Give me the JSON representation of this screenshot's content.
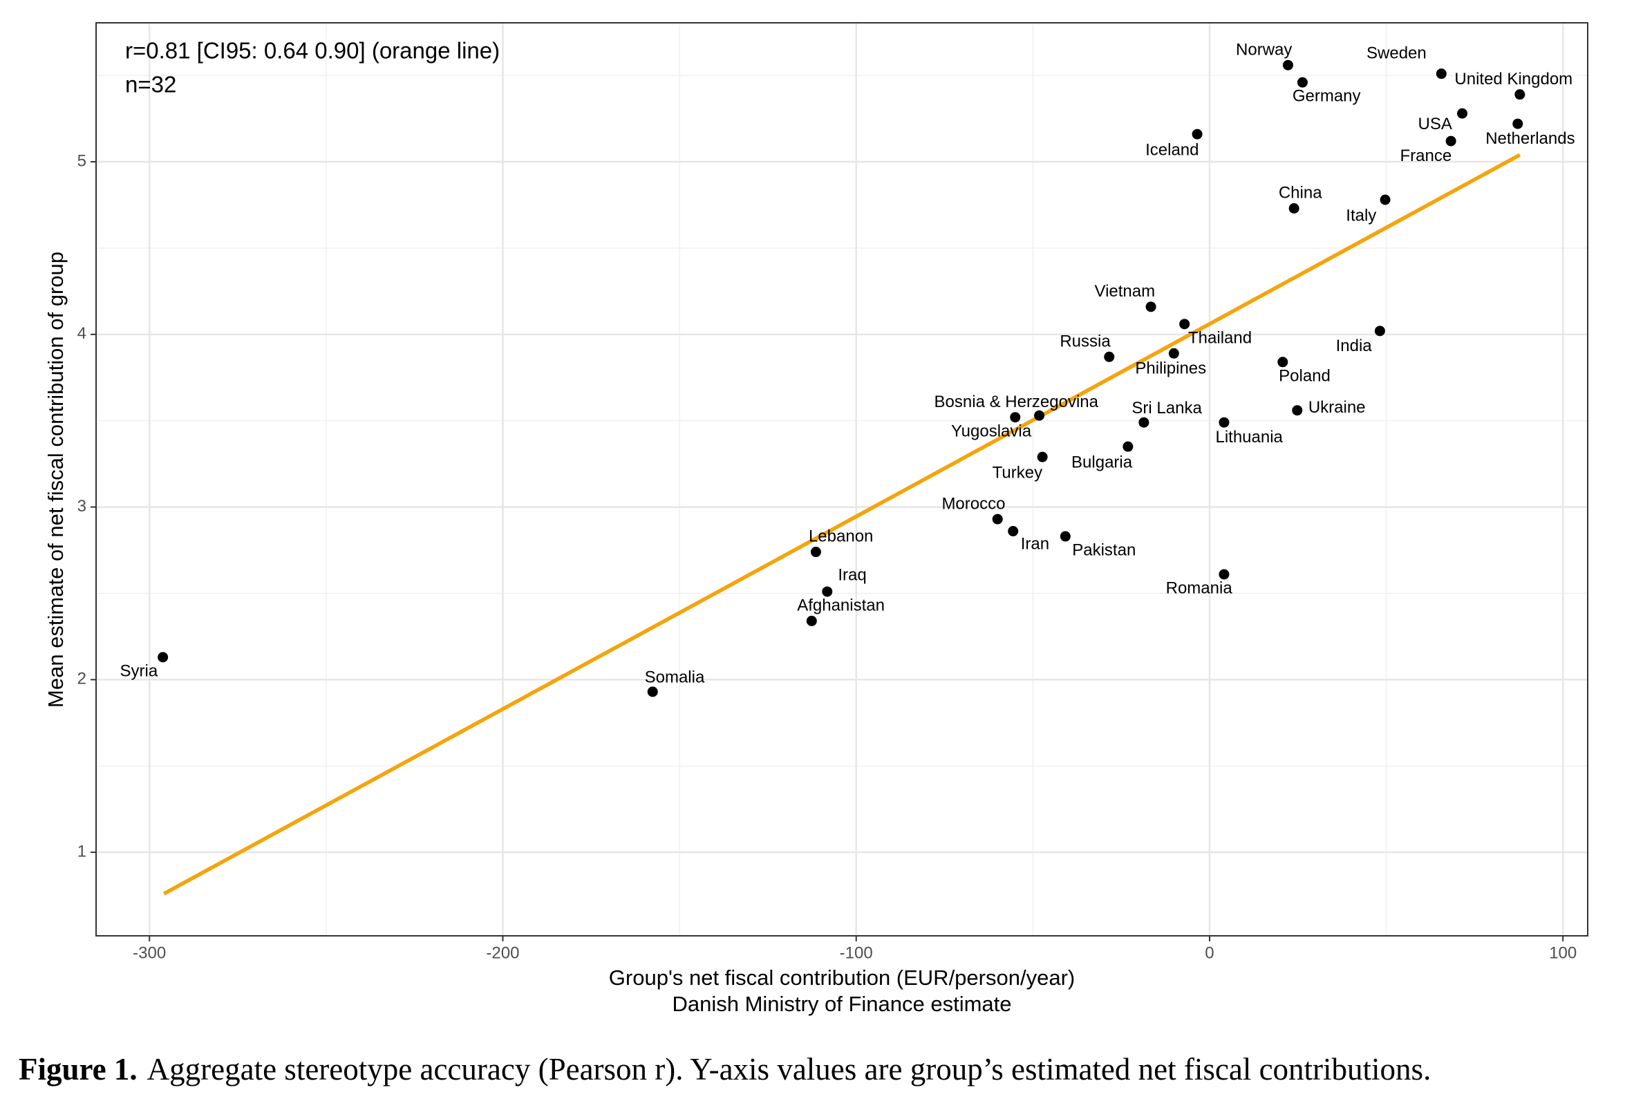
{
  "chart_data": {
    "type": "scatter",
    "annotations": [
      "r=0.81 [CI95: 0.64 0.90] (orange line)",
      "n=32"
    ],
    "x_label": [
      "Group's net fiscal contribution (EUR/person/year)",
      "Danish Ministry of Finance estimate"
    ],
    "y_label": "Mean estimate of net fiscal contribution of group",
    "labels": [
      "Syria",
      "Somalia",
      "Afghanistan",
      "Iraq",
      "Lebanon",
      "Morocco",
      "Iran",
      "Pakistan",
      "Turkey",
      "Bosnia & Herzegovina",
      "Yugoslavia",
      "Russia",
      "Vietnam",
      "Thailand",
      "Philipines",
      "Sri Lanka",
      "Bulgaria",
      "Lithuania",
      "Romania",
      "Iceland",
      "Norway",
      "Germany",
      "China",
      "Italy",
      "Poland",
      "Ukraine",
      "India",
      "Sweden",
      "United Kingdom",
      "USA",
      "France",
      "Netherlands"
    ],
    "x": [
      -296.2,
      -157.6,
      -112.6,
      -108.2,
      -111.4,
      -60.0,
      -55.6,
      -40.8,
      -47.3,
      -55.0,
      -48.2,
      -28.4,
      -16.6,
      -7.1,
      -10.1,
      -18.6,
      -23.1,
      4.1,
      4.1,
      -3.5,
      22.2,
      26.3,
      23.9,
      49.7,
      20.7,
      24.8,
      48.2,
      65.6,
      87.8,
      71.5,
      68.3,
      87.2
    ],
    "values": [
      2.13,
      1.93,
      2.34,
      2.51,
      2.74,
      2.93,
      2.86,
      2.83,
      3.29,
      3.52,
      3.53,
      3.87,
      4.16,
      4.06,
      3.89,
      3.49,
      3.35,
      3.49,
      2.61,
      5.16,
      5.56,
      5.46,
      4.73,
      4.78,
      3.84,
      3.56,
      4.02,
      5.51,
      5.39,
      5.28,
      5.12,
      5.22
    ],
    "color": "#000000",
    "fit_line": {
      "color": "#f5a40c",
      "x": [
        -295.9,
        87.8
      ],
      "y": [
        0.76,
        5.04
      ]
    },
    "xlim": [
      -315.1,
      107.0
    ],
    "xticks": [
      -300,
      -200,
      -100,
      0,
      100
    ],
    "ylim": [
      0.516,
      5.805
    ],
    "yticks": [
      1,
      2,
      3,
      4,
      5
    ],
    "grid": true
  },
  "caption": {
    "label": "Figure 1.",
    "text": "Aggregate stereotype accuracy (Pearson r). Y-axis values are group’s estimated net fiscal contributions."
  }
}
